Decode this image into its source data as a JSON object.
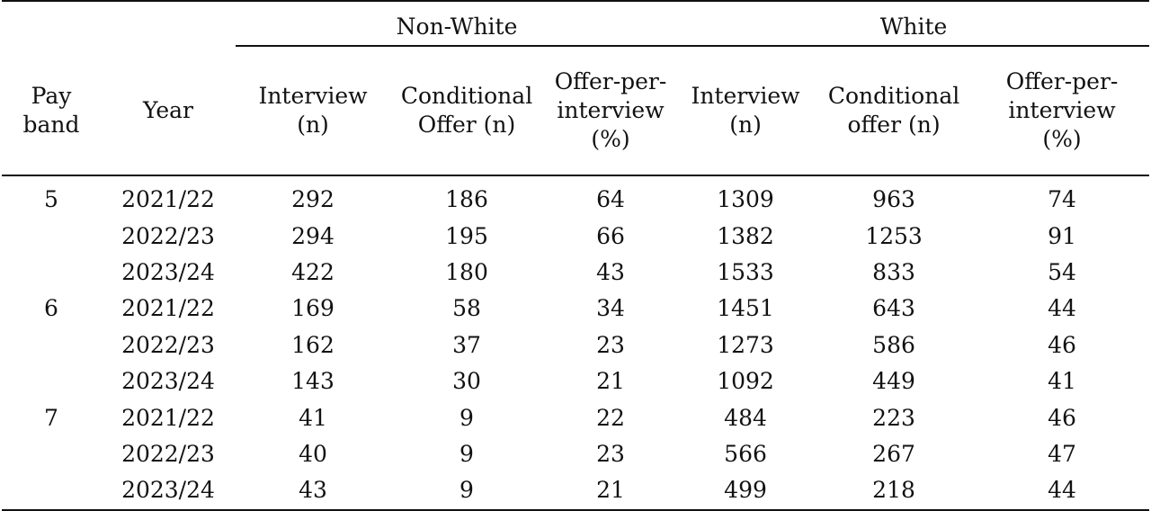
{
  "table": {
    "groups": {
      "non_white": "Non-White",
      "white": "White"
    },
    "headers": {
      "pay_band": "Pay band",
      "year": "Year",
      "nw_interview": "Interview (n)",
      "nw_conditional": "Conditional Offer (n)",
      "nw_offer_pct": "Offer-per-interview (%)",
      "w_interview": "Interview (n)",
      "w_conditional": "Conditional offer (n)",
      "w_offer_pct": "Offer-per-interview (%)"
    },
    "rows": [
      {
        "band": "5",
        "year": "2021/22",
        "nw_interview": "292",
        "nw_conditional": "186",
        "nw_offer_pct": "64",
        "w_interview": "1309",
        "w_conditional": "963",
        "w_offer_pct": "74"
      },
      {
        "band": "",
        "year": "2022/23",
        "nw_interview": "294",
        "nw_conditional": "195",
        "nw_offer_pct": "66",
        "w_interview": "1382",
        "w_conditional": "1253",
        "w_offer_pct": "91"
      },
      {
        "band": "",
        "year": "2023/24",
        "nw_interview": "422",
        "nw_conditional": "180",
        "nw_offer_pct": "43",
        "w_interview": "1533",
        "w_conditional": "833",
        "w_offer_pct": "54"
      },
      {
        "band": "6",
        "year": "2021/22",
        "nw_interview": "169",
        "nw_conditional": "58",
        "nw_offer_pct": "34",
        "w_interview": "1451",
        "w_conditional": "643",
        "w_offer_pct": "44"
      },
      {
        "band": "",
        "year": "2022/23",
        "nw_interview": "162",
        "nw_conditional": "37",
        "nw_offer_pct": "23",
        "w_interview": "1273",
        "w_conditional": "586",
        "w_offer_pct": "46"
      },
      {
        "band": "",
        "year": "2023/24",
        "nw_interview": "143",
        "nw_conditional": "30",
        "nw_offer_pct": "21",
        "w_interview": "1092",
        "w_conditional": "449",
        "w_offer_pct": "41"
      },
      {
        "band": "7",
        "year": "2021/22",
        "nw_interview": "41",
        "nw_conditional": "9",
        "nw_offer_pct": "22",
        "w_interview": "484",
        "w_conditional": "223",
        "w_offer_pct": "46"
      },
      {
        "band": "",
        "year": "2022/23",
        "nw_interview": "40",
        "nw_conditional": "9",
        "nw_offer_pct": "23",
        "w_interview": "566",
        "w_conditional": "267",
        "w_offer_pct": "47"
      },
      {
        "band": "",
        "year": "2023/24",
        "nw_interview": "43",
        "nw_conditional": "9",
        "nw_offer_pct": "21",
        "w_interview": "499",
        "w_conditional": "218",
        "w_offer_pct": "44"
      }
    ]
  }
}
